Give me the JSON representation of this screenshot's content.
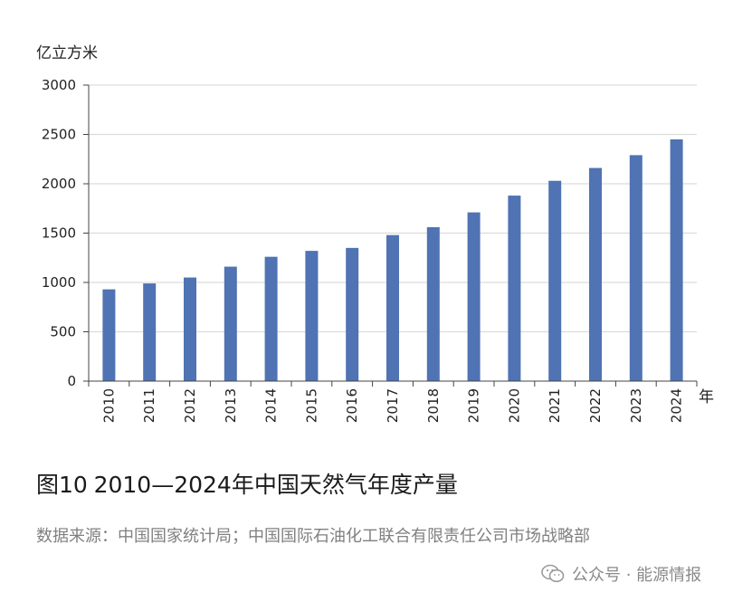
{
  "chart_data": {
    "type": "bar",
    "ylabel": "亿立方米",
    "xlabel": "年",
    "categories": [
      "2010",
      "2011",
      "2012",
      "2013",
      "2014",
      "2015",
      "2016",
      "2017",
      "2018",
      "2019",
      "2020",
      "2021",
      "2022",
      "2023",
      "2024"
    ],
    "values": [
      930,
      990,
      1050,
      1160,
      1260,
      1320,
      1350,
      1480,
      1560,
      1710,
      1880,
      2030,
      2160,
      2290,
      2450
    ],
    "ylim": [
      0,
      3000
    ],
    "yticks": [
      "0",
      "500",
      "1000",
      "1500",
      "2000",
      "2500",
      "3000"
    ],
    "grid": true,
    "bar_color": "#4f73b3"
  },
  "caption": "图10\t2010—2024年中国天然气年度产量",
  "source": "数据来源：中国国家统计局；中国国际石油化工联合有限责任公司市场战略部",
  "watermark": {
    "text": "公众号 · 能源情报",
    "icon": "wechat-icon"
  }
}
